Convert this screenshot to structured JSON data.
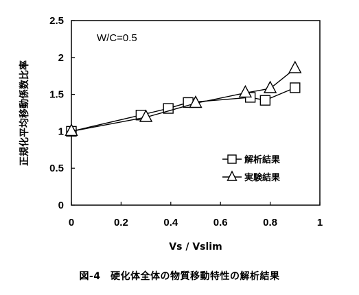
{
  "chart_data": {
    "type": "line",
    "annotation": "W/C=0.5",
    "xlabel": "Vs / Vslim",
    "ylabel": "正規化平均移動係数比率",
    "xlim": [
      0,
      1
    ],
    "ylim": [
      0,
      2.5
    ],
    "xticks": [
      "0",
      "0.2",
      "0.4",
      "0.6",
      "0.8",
      "1"
    ],
    "yticks": [
      "0",
      "0.5",
      "1",
      "1.5",
      "2",
      "2.5"
    ],
    "grid": false,
    "legend_position": "bottom-right",
    "series": [
      {
        "name": "解析結果",
        "marker": "square",
        "x": [
          0,
          0.28,
          0.39,
          0.47,
          0.72,
          0.78,
          0.9
        ],
        "y": [
          1.0,
          1.22,
          1.31,
          1.39,
          1.46,
          1.42,
          1.59
        ]
      },
      {
        "name": "実験結果",
        "marker": "triangle",
        "x": [
          0,
          0.3,
          0.5,
          0.7,
          0.8,
          0.9
        ],
        "y": [
          1.0,
          1.19,
          1.38,
          1.52,
          1.58,
          1.85
        ]
      }
    ]
  },
  "caption": "図-4　硬化体全体の物質移動特性の解析結果"
}
